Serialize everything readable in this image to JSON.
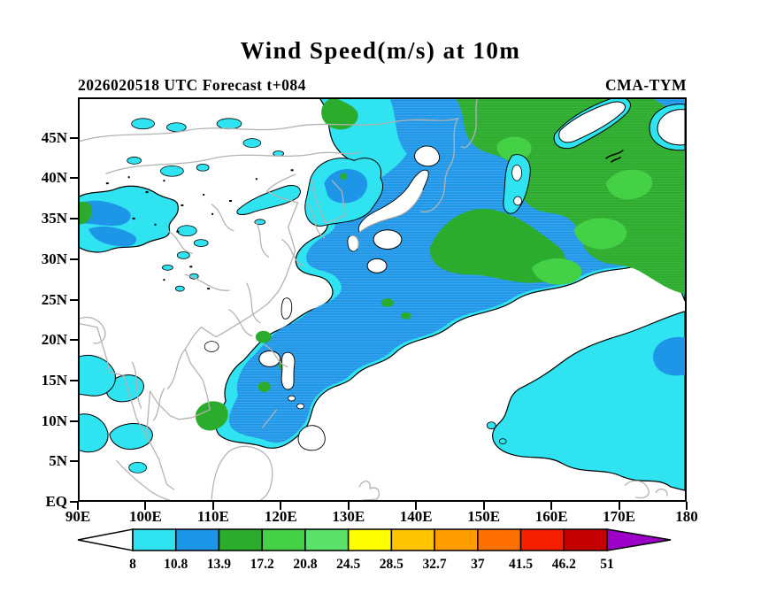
{
  "title": "Wind Speed(m/s) at 10m",
  "header": {
    "left": "2026020518 UTC Forecast t+084",
    "right": "CMA-TYM"
  },
  "chart_data": {
    "type": "heatmap",
    "subtype": "filled_contour_weather_map",
    "title": "Wind Speed(m/s) at 10m",
    "variable": "wind speed at 10m",
    "units": "m/s",
    "model": "CMA-TYM",
    "init_time": "2026020518 UTC",
    "forecast_step": "t+084",
    "map_extent": {
      "lon_min": "90E",
      "lon_max": "180",
      "lat_min": "EQ",
      "lat_max": "50N"
    },
    "x_axis": {
      "ticks": [
        "90E",
        "100E",
        "110E",
        "120E",
        "130E",
        "140E",
        "150E",
        "160E",
        "170E",
        "180"
      ]
    },
    "y_axis": {
      "ticks": [
        "EQ",
        "5N",
        "10N",
        "15N",
        "20N",
        "25N",
        "30N",
        "35N",
        "40N",
        "45N"
      ]
    },
    "grid": false,
    "legend_position": "bottom",
    "colorbar": {
      "levels": [
        "8",
        "10.8",
        "13.9",
        "17.2",
        "20.8",
        "24.5",
        "28.5",
        "32.7",
        "37",
        "41.5",
        "46.2",
        "51"
      ],
      "cell_colors": [
        "#2FE3F0",
        "#1E96E8",
        "#2CAC2C",
        "#45D145",
        "#5BE26B",
        "#FFFF00",
        "#FFC400",
        "#FF9C00",
        "#FF7000",
        "#F62000",
        "#C40000"
      ],
      "under_color": "#FFFFFF",
      "over_color": "#9C00C8"
    },
    "regions_observed": [
      {
        "region": "Northwest Pacific from Japan eastward to 180, 20N-50N",
        "wind_ms": "10.8-24.5",
        "shading": [
          "blue 10.8-13.9",
          "green 13.9-17.2",
          "light green 17.2-20.8"
        ]
      },
      {
        "region": "Band through East China Sea, Taiwan, Philippine Sea into South China Sea",
        "wind_ms": "8-17.2",
        "shading": [
          "cyan fringe 8-10.8",
          "blue core 10.8-13.9",
          "small green patches 13.9-17.2"
        ]
      },
      {
        "region": "Tibetan Plateau and scattered north China patches",
        "wind_ms": "8-13.9"
      },
      {
        "region": "Tropical Pacific lower-right of map",
        "wind_ms": "8-13.9",
        "shading": [
          "large cyan area with small blue patch at east edge"
        ]
      },
      {
        "region": "Bay of Bengal and Gulf of Thailand small patches",
        "wind_ms": "8-10.8"
      },
      {
        "region": "Most land areas and white ocean gaps including calm wedge near 165E-175E 42N-47N and eye-like calm spot near 153E 35N-41N",
        "wind_ms": "below 8"
      }
    ]
  },
  "colors": {
    "frame": "#000000",
    "coastline": "#B3B3B3",
    "land": "#FFFFFF",
    "contour": "#000000",
    "level1_cyan": "#2FE3F0",
    "level2_blue": "#1E96E8",
    "level3_green": "#2CAC2C",
    "level4_green_light": "#45D145",
    "level5_green_pale": "#5BE26B",
    "level6_yellow": "#FFFF00",
    "level7_amber": "#FFC400",
    "level8_orange": "#FF9C00",
    "level9_orange_deep": "#FF7000",
    "level10_red": "#F62000",
    "level11_red_dark": "#C40000",
    "over_purple": "#9C00C8",
    "under_white": "#FFFFFF"
  }
}
